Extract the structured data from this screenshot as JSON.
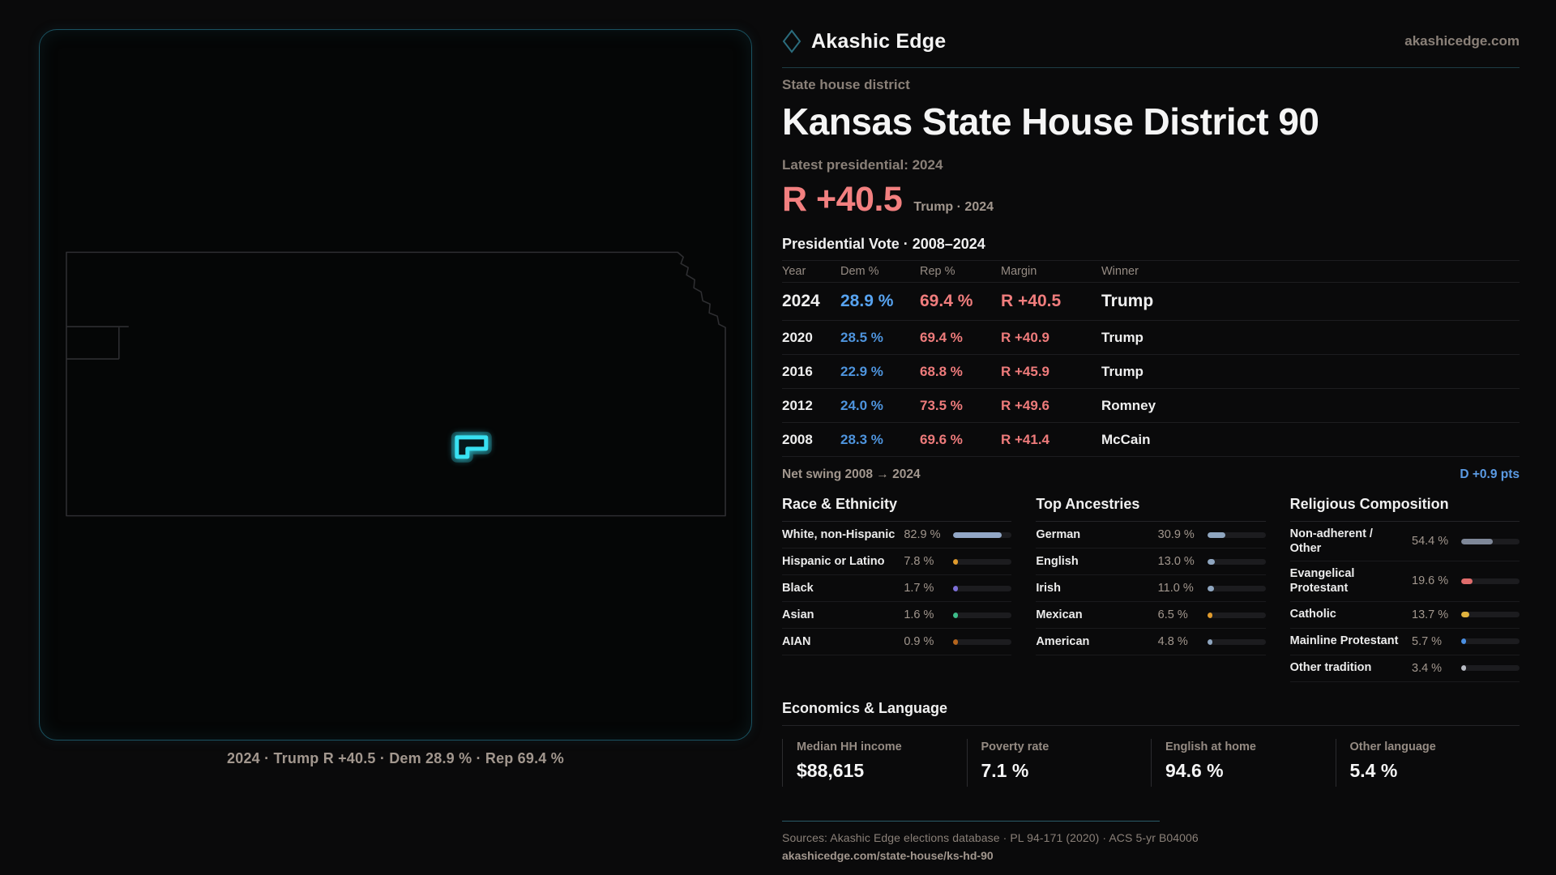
{
  "brand": {
    "name": "Akashic Edge",
    "domain": "akashicedge.com"
  },
  "page": {
    "kicker": "State house district",
    "title": "Kansas State House District 90",
    "latest_label": "Latest presidential: 2024",
    "headline_margin": "R +40.5",
    "headline_context": "Trump · 2024",
    "margin_color": "#f28080"
  },
  "map": {
    "state": "Kansas",
    "district": "Kansas State House District 90",
    "caption": "2024 · Trump R +40.5 · Dem 28.9 % · Rep 69.4 %",
    "district_color": "#38e1f2",
    "outline_color": "#2e2e31"
  },
  "vote_table": {
    "title": "Presidential Vote · 2008–2024",
    "columns": {
      "year": "Year",
      "dem": "Dem %",
      "rep": "Rep %",
      "margin": "Margin",
      "winner": "Winner"
    },
    "rows": [
      {
        "year": "2024",
        "dem": "28.9 %",
        "rep": "69.4 %",
        "margin": "R +40.5",
        "winner": "Trump",
        "featured": true
      },
      {
        "year": "2020",
        "dem": "28.5 %",
        "rep": "69.4 %",
        "margin": "R +40.9",
        "winner": "Trump"
      },
      {
        "year": "2016",
        "dem": "22.9 %",
        "rep": "68.8 %",
        "margin": "R +45.9",
        "winner": "Trump"
      },
      {
        "year": "2012",
        "dem": "24.0 %",
        "rep": "73.5 %",
        "margin": "R +49.6",
        "winner": "Romney"
      },
      {
        "year": "2008",
        "dem": "28.3 %",
        "rep": "69.6 %",
        "margin": "R +41.4",
        "winner": "McCain"
      }
    ],
    "net_swing_label": "Net swing 2008 → 2024",
    "net_swing_value": "D +0.9 pts",
    "net_swing_color": "#5b9be4"
  },
  "demographics": {
    "race": {
      "title": "Race & Ethnicity",
      "rows": [
        {
          "label": "White, non-Hispanic",
          "value": "82.9 %",
          "pct": 82.9,
          "color": "#92a7c6"
        },
        {
          "label": "Hispanic or Latino",
          "value": "7.8 %",
          "pct": 7.8,
          "color": "#e09b2d"
        },
        {
          "label": "Black",
          "value": "1.7 %",
          "pct": 1.7,
          "color": "#7d6fd8"
        },
        {
          "label": "Asian",
          "value": "1.6 %",
          "pct": 1.6,
          "color": "#3dbd8a"
        },
        {
          "label": "AIAN",
          "value": "0.9 %",
          "pct": 0.9,
          "color": "#b5651d"
        }
      ]
    },
    "ancestries": {
      "title": "Top Ancestries",
      "rows": [
        {
          "label": "German",
          "value": "30.9 %",
          "pct": 30.9,
          "color": "#8fa6c0"
        },
        {
          "label": "English",
          "value": "13.0 %",
          "pct": 13.0,
          "color": "#8fa6c0"
        },
        {
          "label": "Irish",
          "value": "11.0 %",
          "pct": 11.0,
          "color": "#8fa6c0"
        },
        {
          "label": "Mexican",
          "value": "6.5 %",
          "pct": 6.5,
          "color": "#e09b2d"
        },
        {
          "label": "American",
          "value": "4.8 %",
          "pct": 4.8,
          "color": "#8fa6c0"
        }
      ]
    },
    "religion": {
      "title": "Religious Composition",
      "rows": [
        {
          "label": "Non-adherent / Other",
          "value": "54.4 %",
          "pct": 54.4,
          "color": "#7e8798"
        },
        {
          "label": "Evangelical Protestant",
          "value": "19.6 %",
          "pct": 19.6,
          "color": "#e06c6c"
        },
        {
          "label": "Catholic",
          "value": "13.7 %",
          "pct": 13.7,
          "color": "#e0b23e"
        },
        {
          "label": "Mainline Protestant",
          "value": "5.7 %",
          "pct": 5.7,
          "color": "#4a8fe2"
        },
        {
          "label": "Other tradition",
          "value": "3.4 %",
          "pct": 3.4,
          "color": "#b9bcc4"
        }
      ]
    }
  },
  "economics": {
    "title": "Economics & Language",
    "stats": [
      {
        "label": "Median HH income",
        "value": "$88,615"
      },
      {
        "label": "Poverty rate",
        "value": "7.1 %"
      },
      {
        "label": "English at home",
        "value": "94.6 %"
      },
      {
        "label": "Other language",
        "value": "5.4 %"
      }
    ]
  },
  "footer": {
    "sources": "Sources: Akashic Edge elections database · PL 94-171 (2020) · ACS 5-yr B04006",
    "url": "akashicedge.com/state-house/ks-hd-90"
  }
}
